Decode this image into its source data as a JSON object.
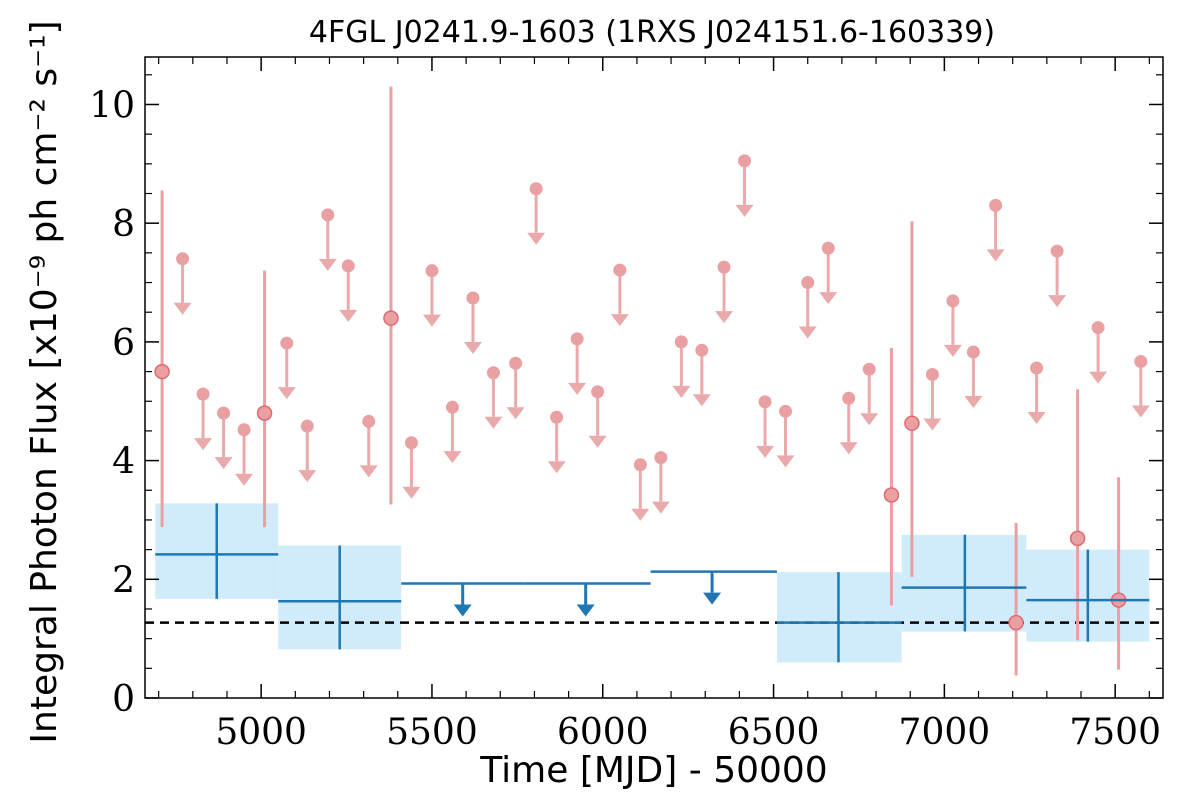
{
  "chart_data": {
    "type": "scatter",
    "title": "4FGL J0241.9-1603 (1RXS J024151.6-160339)",
    "xlabel": "Time [MJD] - 50000",
    "ylabel": "Integral Photon Flux [x10⁻⁹ ph cm⁻² s⁻¹]",
    "xlim": [
      4660,
      7640
    ],
    "ylim": [
      0,
      10.8
    ],
    "xticks": [
      5000,
      5500,
      6000,
      6500,
      7000,
      7500
    ],
    "yticks": [
      0,
      2,
      4,
      6,
      8,
      10
    ],
    "grid": false,
    "mean_flux": 1.27,
    "colors": {
      "short_bins": "#e8a0a2",
      "short_bins_edge": "#e06a70",
      "long_bins": "#1f77b4",
      "long_bins_band": "#d0ecfb"
    },
    "long_bins": [
      {
        "x": 4870,
        "x_lo": 4690,
        "x_hi": 5050,
        "y": 2.42,
        "y_lo": 1.67,
        "y_hi": 3.28,
        "band_lo": 1.67,
        "band_hi": 3.28,
        "upper_limit": false
      },
      {
        "x": 5230,
        "x_lo": 5050,
        "x_hi": 5410,
        "y": 1.63,
        "y_lo": 0.82,
        "y_hi": 2.57,
        "band_lo": 0.82,
        "band_hi": 2.57,
        "upper_limit": false
      },
      {
        "x": 5590,
        "x_lo": 5410,
        "x_hi": 5770,
        "y": 1.93,
        "upper_limit": true
      },
      {
        "x": 5950,
        "x_lo": 5770,
        "x_hi": 6140,
        "y": 1.93,
        "upper_limit": true
      },
      {
        "x": 6320,
        "x_lo": 6140,
        "x_hi": 6510,
        "y": 2.13,
        "upper_limit": true
      },
      {
        "x": 6690,
        "x_lo": 6510,
        "x_hi": 6875,
        "y": 1.27,
        "y_lo": 0.6,
        "y_hi": 2.12,
        "band_lo": 0.6,
        "band_hi": 2.12,
        "upper_limit": false
      },
      {
        "x": 7060,
        "x_lo": 6875,
        "x_hi": 7240,
        "y": 1.86,
        "y_lo": 1.12,
        "y_hi": 2.75,
        "band_lo": 1.12,
        "band_hi": 2.75,
        "upper_limit": false
      },
      {
        "x": 7420,
        "x_lo": 7240,
        "x_hi": 7600,
        "y": 1.65,
        "y_lo": 0.95,
        "y_hi": 2.5,
        "band_lo": 0.95,
        "band_hi": 2.5,
        "upper_limit": false
      }
    ],
    "short_bins": [
      {
        "x": 4710,
        "y": 5.5,
        "y_lo": 2.88,
        "y_hi": 8.55,
        "upper_limit": false
      },
      {
        "x": 4770,
        "y": 7.4,
        "upper_limit": true
      },
      {
        "x": 4830,
        "y": 5.12,
        "upper_limit": true
      },
      {
        "x": 4890,
        "y": 4.8,
        "upper_limit": true
      },
      {
        "x": 4950,
        "y": 4.52,
        "upper_limit": true
      },
      {
        "x": 5010,
        "y": 4.8,
        "y_lo": 2.88,
        "y_hi": 7.2,
        "upper_limit": false
      },
      {
        "x": 5075,
        "y": 5.98,
        "upper_limit": true
      },
      {
        "x": 5135,
        "y": 4.58,
        "upper_limit": true
      },
      {
        "x": 5195,
        "y": 8.14,
        "upper_limit": true
      },
      {
        "x": 5255,
        "y": 7.28,
        "upper_limit": true
      },
      {
        "x": 5315,
        "y": 4.66,
        "upper_limit": true
      },
      {
        "x": 5380,
        "y": 6.4,
        "y_lo": 3.26,
        "y_hi": 10.3,
        "upper_limit": false
      },
      {
        "x": 5440,
        "y": 4.3,
        "upper_limit": true
      },
      {
        "x": 5500,
        "y": 7.2,
        "upper_limit": true
      },
      {
        "x": 5560,
        "y": 4.9,
        "upper_limit": true
      },
      {
        "x": 5620,
        "y": 6.74,
        "upper_limit": true
      },
      {
        "x": 5680,
        "y": 5.48,
        "upper_limit": true
      },
      {
        "x": 5745,
        "y": 5.64,
        "upper_limit": true
      },
      {
        "x": 5805,
        "y": 8.58,
        "upper_limit": true
      },
      {
        "x": 5865,
        "y": 4.73,
        "upper_limit": true
      },
      {
        "x": 5925,
        "y": 6.05,
        "upper_limit": true
      },
      {
        "x": 5985,
        "y": 5.16,
        "upper_limit": true
      },
      {
        "x": 6050,
        "y": 7.21,
        "upper_limit": true
      },
      {
        "x": 6110,
        "y": 3.93,
        "upper_limit": true
      },
      {
        "x": 6170,
        "y": 4.05,
        "upper_limit": true
      },
      {
        "x": 6230,
        "y": 6.0,
        "upper_limit": true
      },
      {
        "x": 6290,
        "y": 5.86,
        "upper_limit": true
      },
      {
        "x": 6355,
        "y": 7.26,
        "upper_limit": true
      },
      {
        "x": 6415,
        "y": 9.05,
        "upper_limit": true
      },
      {
        "x": 6475,
        "y": 4.99,
        "upper_limit": true
      },
      {
        "x": 6535,
        "y": 4.83,
        "upper_limit": true
      },
      {
        "x": 6600,
        "y": 7.0,
        "upper_limit": true
      },
      {
        "x": 6660,
        "y": 7.58,
        "upper_limit": true
      },
      {
        "x": 6720,
        "y": 5.05,
        "upper_limit": true
      },
      {
        "x": 6780,
        "y": 5.54,
        "upper_limit": true
      },
      {
        "x": 6845,
        "y": 3.42,
        "y_lo": 1.56,
        "y_hi": 5.9,
        "upper_limit": false
      },
      {
        "x": 6905,
        "y": 4.63,
        "y_lo": 2.04,
        "y_hi": 8.03,
        "upper_limit": false
      },
      {
        "x": 6965,
        "y": 5.45,
        "upper_limit": true
      },
      {
        "x": 7025,
        "y": 6.69,
        "upper_limit": true
      },
      {
        "x": 7085,
        "y": 5.83,
        "upper_limit": true
      },
      {
        "x": 7150,
        "y": 8.3,
        "upper_limit": true
      },
      {
        "x": 7210,
        "y": 1.27,
        "y_lo": 0.38,
        "y_hi": 2.95,
        "upper_limit": false
      },
      {
        "x": 7270,
        "y": 5.56,
        "upper_limit": true
      },
      {
        "x": 7330,
        "y": 7.53,
        "upper_limit": true
      },
      {
        "x": 7390,
        "y": 2.69,
        "y_lo": 0.97,
        "y_hi": 5.2,
        "upper_limit": false
      },
      {
        "x": 7450,
        "y": 6.24,
        "upper_limit": true
      },
      {
        "x": 7510,
        "y": 1.65,
        "y_lo": 0.48,
        "y_hi": 3.72,
        "upper_limit": false
      },
      {
        "x": 7575,
        "y": 5.67,
        "upper_limit": true
      }
    ]
  }
}
